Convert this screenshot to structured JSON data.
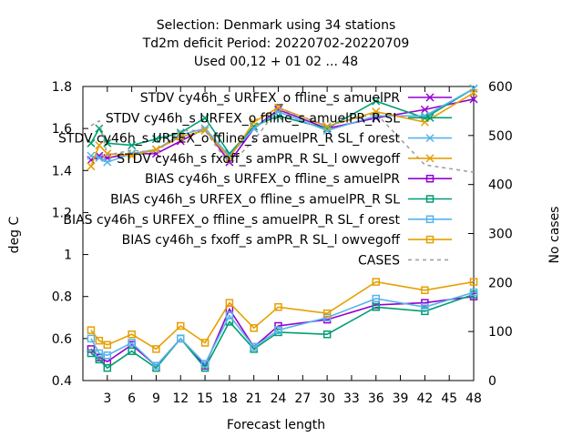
{
  "chart_data": {
    "type": "line",
    "title_lines": [
      "Selection: Denmark using    34 stations",
      "Td2m deficit   Period: 20220702-20220709",
      "Used  00,12  + 01 02 ... 48"
    ],
    "xlabel": "Forecast length",
    "ylabel": "deg C",
    "y2label": "No cases",
    "x_ticks": [
      3,
      6,
      9,
      12,
      15,
      18,
      21,
      24,
      27,
      30,
      33,
      36,
      39,
      42,
      45,
      48
    ],
    "y_ticks": [
      "0.4",
      "0.6",
      "0.8",
      "1",
      "1.2",
      "1.4",
      "1.6",
      "1.8"
    ],
    "y2_ticks": [
      "0",
      "100",
      "200",
      "300",
      "400",
      "500",
      "600"
    ],
    "xlim": [
      0,
      48
    ],
    "ylim": [
      0.4,
      1.8
    ],
    "y2lim": [
      0,
      600
    ],
    "legend_position": "top-right",
    "x": [
      1,
      2,
      3,
      6,
      9,
      12,
      15,
      18,
      21,
      24,
      30,
      36,
      42,
      48
    ],
    "series": [
      {
        "name": "STDV cy46h_s URFEX_o ffline_s amuelPR",
        "color": "#9400d3",
        "marker": "x",
        "axis": "y1",
        "values": [
          1.45,
          1.47,
          1.46,
          1.48,
          1.48,
          1.54,
          1.6,
          1.44,
          1.6,
          1.69,
          1.6,
          1.65,
          1.69,
          1.74
        ]
      },
      {
        "name": "STDV cy46h_s URFEX_o ffline_s amuelPR_R SL",
        "color": "#009e73",
        "marker": "x",
        "axis": "y1",
        "values": [
          1.53,
          1.6,
          1.53,
          1.52,
          1.55,
          1.58,
          1.65,
          1.48,
          1.61,
          1.66,
          1.6,
          1.73,
          1.65,
          1.79
        ]
      },
      {
        "name": "STDV cy46h_s URFEX_o ffline_s amuelPR_R SL_f orest",
        "color": "#56b4e9",
        "marker": "x",
        "axis": "y1",
        "values": [
          1.47,
          1.46,
          1.44,
          1.48,
          1.5,
          1.57,
          1.6,
          1.47,
          1.6,
          1.68,
          1.59,
          1.66,
          1.66,
          1.79
        ]
      },
      {
        "name": "STDV cy46h_s fxoff_s amPR_R SL_l owvegoff",
        "color": "#e69f00",
        "marker": "x",
        "axis": "y1",
        "values": [
          1.42,
          1.52,
          1.48,
          1.47,
          1.5,
          1.56,
          1.59,
          1.46,
          1.63,
          1.7,
          1.61,
          1.68,
          1.63,
          1.77
        ]
      },
      {
        "name": "BIAS cy46h_s URFEX_o ffline_s amuelPR",
        "color": "#9400d3",
        "marker": "square",
        "axis": "y1",
        "values": [
          0.55,
          0.51,
          0.49,
          0.57,
          0.47,
          0.6,
          0.47,
          0.74,
          0.56,
          0.66,
          0.69,
          0.76,
          0.77,
          0.8
        ]
      },
      {
        "name": "BIAS cy46h_s URFEX_o ffline_s amuelPR_R SL",
        "color": "#009e73",
        "marker": "square",
        "axis": "y1",
        "values": [
          0.53,
          0.5,
          0.46,
          0.54,
          0.46,
          0.6,
          0.46,
          0.68,
          0.55,
          0.63,
          0.62,
          0.75,
          0.73,
          0.81
        ]
      },
      {
        "name": "BIAS cy46h_s URFEX_o ffline_s amuelPR_R SL_f orest",
        "color": "#56b4e9",
        "marker": "square",
        "axis": "y1",
        "values": [
          0.6,
          0.53,
          0.52,
          0.58,
          0.47,
          0.6,
          0.48,
          0.71,
          0.56,
          0.64,
          0.7,
          0.79,
          0.75,
          0.82
        ]
      },
      {
        "name": "BIAS cy46h_s fxoff_s amPR_R SL_l owvegoff",
        "color": "#e69f00",
        "marker": "square",
        "axis": "y1",
        "values": [
          0.64,
          0.59,
          0.57,
          0.62,
          0.55,
          0.66,
          0.58,
          0.77,
          0.65,
          0.75,
          0.72,
          0.87,
          0.83,
          0.87
        ]
      },
      {
        "name": "CASES",
        "color": "#a0a0a0",
        "marker": "none",
        "dash": true,
        "axis": "y2",
        "values": [
          520,
          530,
          460,
          470,
          465,
          510,
          510,
          440,
          490,
          555,
          520,
          545,
          440,
          425
        ]
      }
    ]
  }
}
